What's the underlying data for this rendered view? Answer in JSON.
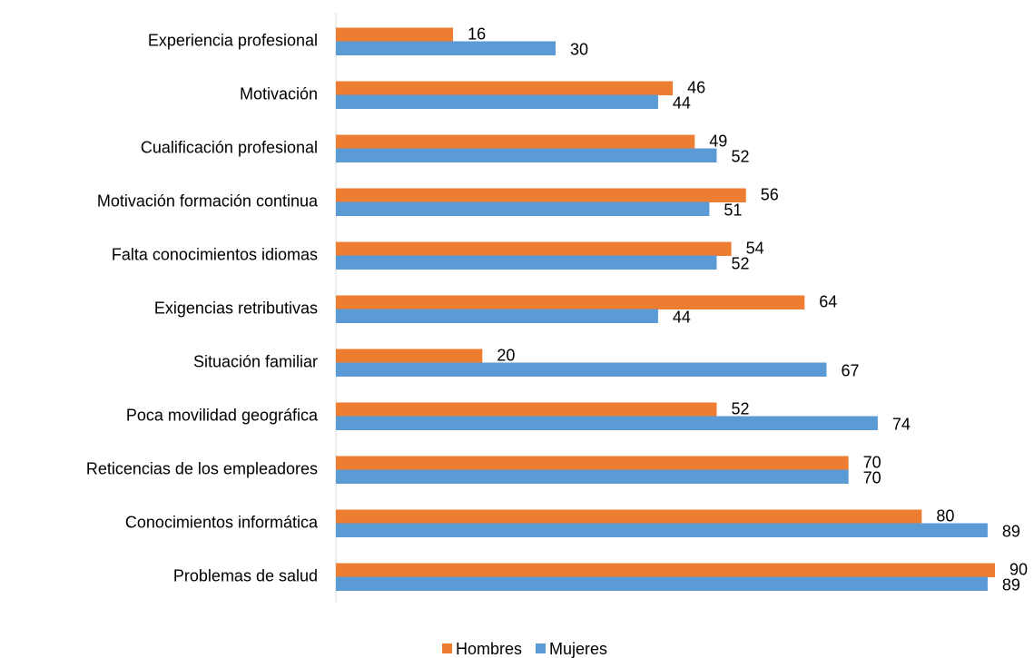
{
  "chart_data": {
    "type": "bar",
    "orientation": "horizontal",
    "categories": [
      "Experiencia profesional",
      "Motivación",
      "Cualificación profesional",
      "Motivación formación continua",
      "Falta conocimientos idiomas",
      "Exigencias retributivas",
      "Situación familiar",
      "Poca movilidad geográfica",
      "Reticencias de los empleadores",
      "Conocimientos informática",
      "Problemas de salud"
    ],
    "series": [
      {
        "name": "Hombres",
        "color": "#ed7d31",
        "values": [
          16,
          46,
          49,
          56,
          54,
          64,
          20,
          52,
          70,
          80,
          90
        ]
      },
      {
        "name": "Mujeres",
        "color": "#5b9bd5",
        "values": [
          30,
          44,
          52,
          51,
          52,
          44,
          67,
          74,
          70,
          89,
          89
        ]
      }
    ],
    "xlim": [
      0,
      90
    ],
    "legend": "bottom"
  }
}
